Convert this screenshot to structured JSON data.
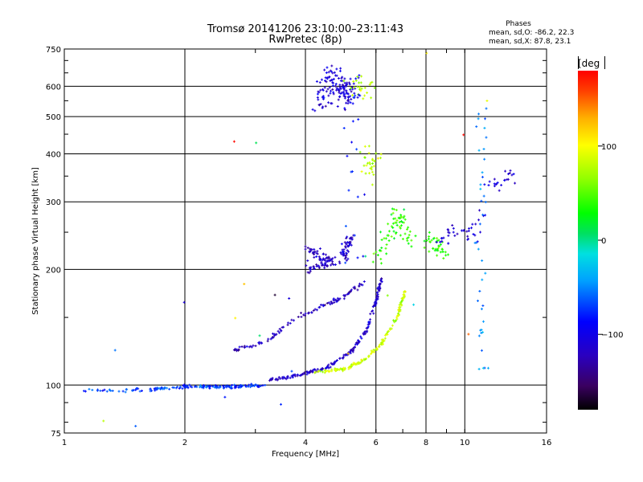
{
  "chart_data": {
    "type": "scatter",
    "title": "Tromsø 20141206 23:10:00–23:11:43",
    "subtitle": "RwPretec (8p)",
    "xlabel": "Frequency [MHz]",
    "ylabel": "Stationary phase Virtual Height [km]",
    "x_scale": "log2",
    "y_scale": "log",
    "xlim": [
      1,
      16
    ],
    "ylim": [
      75,
      750
    ],
    "x_ticks": [
      1,
      2,
      4,
      6,
      8,
      10,
      16
    ],
    "x_tick_labels": [
      "1",
      "2",
      "4",
      "6",
      "8",
      "10",
      "16"
    ],
    "x_grid": [
      2,
      4,
      6,
      8,
      10
    ],
    "y_ticks": [
      75,
      100,
      200,
      300,
      400,
      500,
      600,
      750
    ],
    "y_tick_labels": [
      "75",
      "100",
      "200",
      "300",
      "400",
      "500",
      "600",
      "750"
    ],
    "y_grid": [
      100,
      200,
      300,
      400,
      500,
      600
    ],
    "annotation": {
      "heading": "Phases",
      "line1": "mean, sd,O: -86.2, 22.3",
      "line2": "mean, sd,X:  87.8, 23.1"
    },
    "colorbar": {
      "label": "[deg",
      "range": [
        -180,
        180
      ],
      "ticks": [
        100,
        0,
        -100
      ],
      "tick_labels": [
        "100",
        "0",
        "−100"
      ]
    },
    "clusters": [
      {
        "name": "low-frequency-trace",
        "segments": [
          [
            1.1,
            97,
            1.6,
            97
          ],
          [
            1.6,
            97,
            2.0,
            99
          ],
          [
            2.0,
            99,
            2.6,
            99
          ],
          [
            2.6,
            99,
            3.2,
            100
          ]
        ],
        "phase": -70,
        "jitter": 3,
        "count": 160
      },
      {
        "name": "o-mode-trace",
        "segments": [
          [
            3.2,
            103,
            4.0,
            107
          ],
          [
            4.0,
            107,
            4.6,
            112
          ],
          [
            4.6,
            112,
            5.2,
            122
          ],
          [
            5.2,
            122,
            5.7,
            140
          ],
          [
            5.7,
            140,
            6.0,
            165
          ],
          [
            6.0,
            165,
            6.2,
            190
          ]
        ],
        "phase": -115,
        "jitter": 3,
        "count": 190
      },
      {
        "name": "x-mode-trace",
        "segments": [
          [
            4.2,
            108,
            5.0,
            110
          ],
          [
            5.0,
            110,
            5.6,
            116
          ],
          [
            5.6,
            116,
            6.2,
            128
          ],
          [
            6.2,
            128,
            6.8,
            152
          ],
          [
            6.8,
            152,
            7.1,
            175
          ]
        ],
        "phase": 85,
        "jitter": 3,
        "count": 150
      },
      {
        "name": "oblique-trace",
        "segments": [
          [
            2.6,
            122,
            3.2,
            130
          ],
          [
            3.2,
            130,
            3.8,
            150
          ],
          [
            3.8,
            150,
            4.4,
            160
          ],
          [
            4.4,
            160,
            5.0,
            170
          ],
          [
            5.0,
            170,
            5.6,
            185
          ]
        ],
        "phase": -120,
        "jitter": 4,
        "count": 110
      },
      {
        "name": "f2-scatter",
        "segments": [
          [
            4.0,
            200,
            5.0,
            215
          ],
          [
            5.0,
            215,
            5.2,
            245
          ],
          [
            4.0,
            230,
            4.6,
            210
          ]
        ],
        "phase": -118,
        "jitter": 10,
        "count": 130
      },
      {
        "name": "upper-echo-cloud",
        "segments": [
          [
            4.4,
            520,
            4.6,
            640
          ],
          [
            4.6,
            640,
            5.2,
            560
          ],
          [
            5.2,
            560,
            4.8,
            600
          ]
        ],
        "phase": -110,
        "jitter": 28,
        "count": 140
      },
      {
        "name": "upper-echo-mixed",
        "segments": [
          [
            5.4,
            560,
            5.8,
            650
          ],
          [
            5.6,
            330,
            5.9,
            420
          ]
        ],
        "phase": 80,
        "jitter": 30,
        "count": 55
      },
      {
        "name": "mid-frequency-scatter",
        "segments": [
          [
            6.0,
            210,
            6.8,
            280
          ],
          [
            6.8,
            280,
            7.5,
            230
          ],
          [
            8.0,
            240,
            9.0,
            220
          ]
        ],
        "phase": 40,
        "jitter": 18,
        "count": 110
      },
      {
        "name": "high-frequency-scatter",
        "segments": [
          [
            8.5,
            230,
            9.5,
            250
          ],
          [
            10.0,
            240,
            11.0,
            280
          ],
          [
            11.5,
            330,
            13.5,
            350
          ]
        ],
        "phase": -110,
        "jitter": 20,
        "count": 60
      },
      {
        "name": "vertical-column",
        "segments": [
          [
            11.0,
            100,
            11.0,
            510
          ]
        ],
        "phase": -50,
        "jitter": 12,
        "count": 40
      },
      {
        "name": "vertical-column-upper",
        "segments": [
          [
            5.2,
            200,
            5.3,
            640
          ]
        ],
        "phase": -80,
        "jitter": 30,
        "count": 25
      },
      {
        "name": "sparse-noise",
        "segments": [
          [
            1.0,
            75,
            16.0,
            750
          ]
        ],
        "phase": -40,
        "jitter": 0,
        "count": 22
      }
    ]
  }
}
